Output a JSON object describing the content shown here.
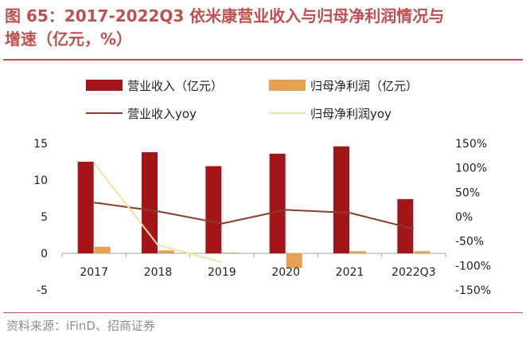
{
  "figure": {
    "title_line1": "图 65：2017-2022Q3 依米康营业收入与归母净利润情况与",
    "title_line2": "增速（亿元，%）",
    "source": "资料来源：iFinD、招商证券"
  },
  "colors": {
    "revenue": "#a31518",
    "profit": "#e5a052",
    "revenue_yoy": "#8b3c2c",
    "profit_yoy": "#efe3a4",
    "title": "#c0504d"
  },
  "chart_data": {
    "type": "bar",
    "categories": [
      "2017",
      "2018",
      "2019",
      "2020",
      "2021",
      "2022Q3"
    ],
    "series": [
      {
        "name": "营业收入（亿元）",
        "kind": "bar",
        "axis": "left",
        "color_key": "revenue",
        "values": [
          12.5,
          13.8,
          11.9,
          13.6,
          14.6,
          7.4
        ]
      },
      {
        "name": "归母净利润（亿元）",
        "kind": "bar",
        "axis": "left",
        "color_key": "profit",
        "values": [
          0.9,
          0.4,
          0.1,
          -2.0,
          0.3,
          0.3
        ]
      },
      {
        "name": "营业收入yoy",
        "kind": "line",
        "axis": "right",
        "color_key": "revenue_yoy",
        "values": [
          29,
          11,
          -14,
          14,
          8,
          -25
        ]
      },
      {
        "name": "归母净利润yoy",
        "kind": "line",
        "axis": "right",
        "color_key": "profit_yoy",
        "values": [
          110,
          -58,
          -93,
          null,
          null,
          null
        ]
      }
    ],
    "left_axis": {
      "ylim": [
        -5,
        15
      ],
      "ticks": [
        "15",
        "10",
        "5",
        "0",
        "-5"
      ]
    },
    "right_axis": {
      "ylim": [
        -150,
        150
      ],
      "ticks": [
        "150%",
        "100%",
        "50%",
        "0%",
        "-50%",
        "-100%",
        "-150%"
      ]
    },
    "legend_position": "top",
    "grid": false
  }
}
